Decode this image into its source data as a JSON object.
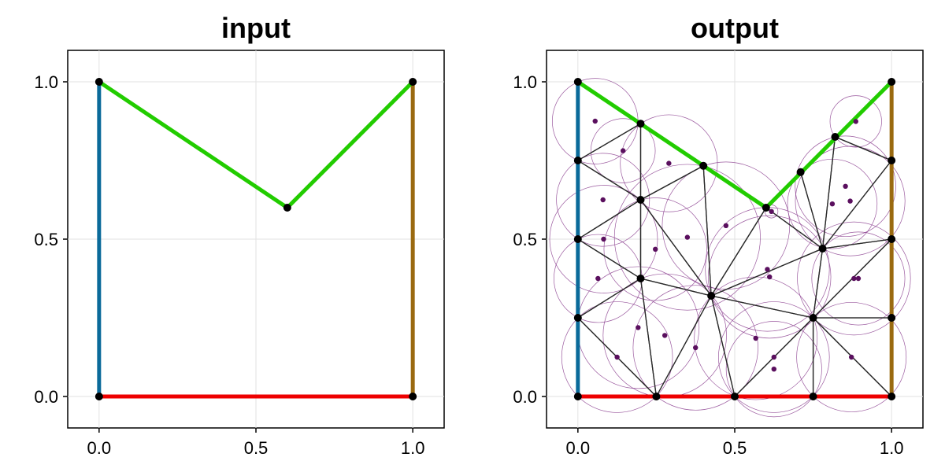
{
  "chart_data": [
    {
      "type": "line",
      "title": "input",
      "xlabel": "",
      "ylabel": "",
      "xlim": [
        -0.1,
        1.1
      ],
      "ylim": [
        -0.1,
        1.1
      ],
      "xticks": [
        0.0,
        0.5,
        1.0
      ],
      "yticks": [
        0.0,
        0.5,
        1.0
      ],
      "xtick_labels": [
        "0.0",
        "0.5",
        "1.0"
      ],
      "ytick_labels": [
        "0.0",
        "0.5",
        "1.0"
      ],
      "grid": true,
      "series": [
        {
          "color": "#ee0000",
          "points": [
            [
              0,
              0
            ],
            [
              1,
              0
            ]
          ]
        },
        {
          "color": "#9a6a10",
          "points": [
            [
              1,
              0
            ],
            [
              1,
              1
            ]
          ]
        },
        {
          "color": "#22cc00",
          "points": [
            [
              1,
              1
            ],
            [
              0.6,
              0.6
            ],
            [
              0,
              1
            ]
          ]
        },
        {
          "color": "#0a6a9a",
          "points": [
            [
              0,
              1
            ],
            [
              0,
              0
            ]
          ]
        }
      ],
      "vertices": [
        [
          0,
          0
        ],
        [
          1,
          0
        ],
        [
          1,
          1
        ],
        [
          0.6,
          0.6
        ],
        [
          0,
          1
        ]
      ]
    },
    {
      "type": "scatter",
      "title": "output",
      "xlabel": "",
      "ylabel": "",
      "xlim": [
        -0.1,
        1.1
      ],
      "ylim": [
        -0.1,
        1.1
      ],
      "xticks": [
        0.0,
        0.5,
        1.0
      ],
      "yticks": [
        0.0,
        0.5,
        1.0
      ],
      "xtick_labels": [
        "0.0",
        "0.5",
        "1.0"
      ],
      "ytick_labels": [
        "0.0",
        "0.5",
        "1.0"
      ],
      "grid": true,
      "boundary": [
        {
          "color": "#ee0000",
          "points": [
            [
              0,
              0
            ],
            [
              1,
              0
            ]
          ]
        },
        {
          "color": "#9a6a10",
          "points": [
            [
              1,
              0
            ],
            [
              1,
              1
            ]
          ]
        },
        {
          "color": "#22cc00",
          "points": [
            [
              1,
              1
            ],
            [
              0.6,
              0.6
            ],
            [
              0,
              1
            ]
          ]
        },
        {
          "color": "#0a6a9a",
          "points": [
            [
              0,
              1
            ],
            [
              0,
              0
            ]
          ]
        }
      ],
      "vertices": [
        [
          0,
          0
        ],
        [
          0.25,
          0
        ],
        [
          0.5,
          0
        ],
        [
          0.75,
          0
        ],
        [
          1,
          0
        ],
        [
          1,
          0.25
        ],
        [
          1,
          0.5
        ],
        [
          1,
          0.75
        ],
        [
          1,
          1
        ],
        [
          0.82,
          0.825
        ],
        [
          0.71,
          0.713
        ],
        [
          0.6,
          0.6
        ],
        [
          0.4,
          0.733
        ],
        [
          0.2,
          0.867
        ],
        [
          0,
          1
        ],
        [
          0,
          0.75
        ],
        [
          0,
          0.5
        ],
        [
          0,
          0.25
        ],
        [
          0.2,
          0.625
        ],
        [
          0.2,
          0.375
        ],
        [
          0.425,
          0.32
        ],
        [
          0.78,
          0.47
        ],
        [
          0.75,
          0.25
        ]
      ],
      "triangles": [
        [
          14,
          13,
          15
        ],
        [
          13,
          18,
          15
        ],
        [
          15,
          18,
          16
        ],
        [
          13,
          12,
          18
        ],
        [
          12,
          11,
          20
        ],
        [
          12,
          20,
          18
        ],
        [
          18,
          20,
          19
        ],
        [
          18,
          19,
          16
        ],
        [
          16,
          19,
          17
        ],
        [
          17,
          19,
          1
        ],
        [
          17,
          1,
          0
        ],
        [
          19,
          20,
          1
        ],
        [
          1,
          20,
          2
        ],
        [
          20,
          11,
          21
        ],
        [
          11,
          10,
          21
        ],
        [
          10,
          9,
          21
        ],
        [
          9,
          8,
          7
        ],
        [
          9,
          7,
          21
        ],
        [
          21,
          7,
          6
        ],
        [
          21,
          6,
          22
        ],
        [
          22,
          6,
          5
        ],
        [
          22,
          5,
          4
        ],
        [
          22,
          4,
          3
        ],
        [
          20,
          21,
          22
        ],
        [
          20,
          22,
          2
        ],
        [
          2,
          22,
          3
        ]
      ],
      "circumcenters": [
        [
          0.055,
          0.875
        ],
        [
          0.144,
          0.781
        ],
        [
          0.08,
          0.625
        ],
        [
          0.29,
          0.741
        ],
        [
          0.472,
          0.543
        ],
        [
          0.349,
          0.506
        ],
        [
          0.247,
          0.468
        ],
        [
          0.082,
          0.5
        ],
        [
          0.064,
          0.375
        ],
        [
          0.192,
          0.219
        ],
        [
          0.125,
          0.125
        ],
        [
          0.277,
          0.194
        ],
        [
          0.375,
          0.155
        ],
        [
          0.611,
          0.38
        ],
        [
          0.617,
          0.588
        ],
        [
          0.811,
          0.612
        ],
        [
          0.886,
          0.874
        ],
        [
          0.853,
          0.668
        ],
        [
          0.868,
          0.621
        ],
        [
          0.894,
          0.375
        ],
        [
          0.88,
          0.375
        ],
        [
          0.872,
          0.125
        ],
        [
          0.625,
          0.125
        ],
        [
          0.604,
          0.404
        ],
        [
          0.567,
          0.185
        ],
        [
          0.625,
          0.087
        ]
      ],
      "point_color": "#5a0f5e",
      "edge_color": "#2a2a2a",
      "vertex_color": "#000000"
    }
  ]
}
